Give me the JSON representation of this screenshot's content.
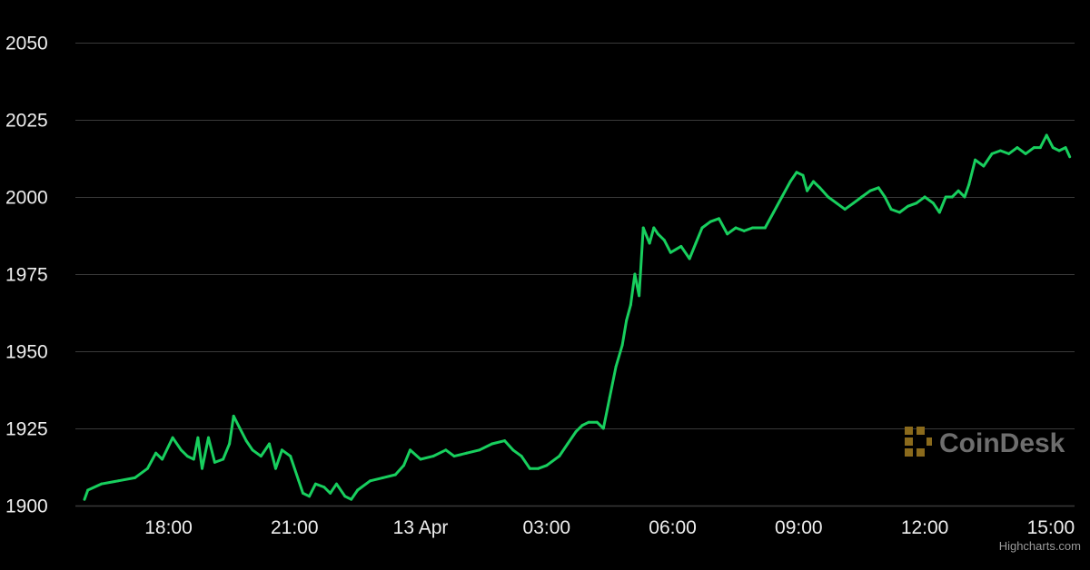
{
  "colors": {
    "background": "#000000",
    "line_up": "#18cf5e",
    "line_down": "#e0261b",
    "grid": "#3a3a3a",
    "text": "#eeeeee",
    "watermark_icon": "#8a6a1c",
    "watermark_text": "#6e6e6e"
  },
  "watermark": {
    "text": "CoinDesk",
    "icon": "coindesk-logo-icon"
  },
  "credit": "Highcharts.com",
  "chart_data": {
    "type": "line",
    "title": "",
    "xlabel": "",
    "ylabel": "",
    "ylim": [
      1900,
      2055
    ],
    "y_ticks": [
      "2050",
      "2025",
      "2000",
      "1975",
      "1950",
      "1925",
      "1900"
    ],
    "y_tick_values": [
      2050,
      2025,
      2000,
      1975,
      1950,
      1925,
      1900
    ],
    "x_ticks": [
      "18:00",
      "21:00",
      "13 Apr",
      "03:00",
      "06:00",
      "09:00",
      "12:00",
      "15:00"
    ],
    "x_tick_hours": [
      18,
      21,
      24,
      27,
      30,
      33,
      36,
      39
    ],
    "xlim_hours": [
      16.0,
      39.5
    ],
    "grid": true,
    "legend": "none",
    "series": [
      {
        "x_hours": [
          16.0,
          16.08,
          16.4,
          16.8,
          17.2,
          17.5,
          17.7,
          17.85,
          18.1,
          18.3,
          18.45,
          18.6,
          18.7,
          18.8,
          18.95,
          19.1,
          19.3,
          19.45,
          19.55,
          19.7,
          19.85,
          20.0,
          20.2,
          20.4,
          20.55,
          20.7,
          20.9,
          21.1,
          21.2,
          21.35,
          21.5,
          21.7,
          21.85,
          22.0,
          22.2,
          22.35,
          22.5,
          22.8,
          23.1,
          23.4,
          23.6,
          23.75,
          24.0,
          24.3,
          24.6,
          24.8,
          25.1,
          25.4,
          25.7,
          26.0,
          26.2,
          26.4,
          26.6,
          26.8,
          27.0,
          27.3,
          27.5,
          27.7,
          27.85,
          28.0,
          28.2,
          28.35,
          28.5,
          28.65,
          28.8,
          28.9,
          29.0,
          29.1,
          29.2,
          29.3,
          29.45,
          29.55,
          29.65,
          29.8,
          29.95,
          30.2,
          30.4,
          30.55,
          30.7,
          30.9,
          31.1,
          31.3,
          31.5,
          31.7,
          31.9,
          32.2,
          32.4,
          32.6,
          32.8,
          32.95,
          33.1,
          33.2,
          33.35,
          33.5,
          33.7,
          33.9,
          34.1,
          34.3,
          34.5,
          34.7,
          34.9,
          35.05,
          35.2,
          35.4,
          35.6,
          35.8,
          36.0,
          36.2,
          36.35,
          36.5,
          36.65,
          36.8,
          36.95,
          37.05,
          37.2,
          37.4,
          37.6,
          37.8,
          38.0,
          38.2,
          38.4,
          38.6,
          38.75,
          38.9,
          39.05,
          39.2,
          39.35,
          39.45
        ],
        "values": [
          1902,
          1905,
          1907,
          1908,
          1909,
          1912,
          1917,
          1915,
          1922,
          1918,
          1916,
          1915,
          1922,
          1912,
          1922,
          1914,
          1915,
          1920,
          1929,
          1925,
          1921,
          1918,
          1916,
          1920,
          1912,
          1918,
          1916,
          1908,
          1904,
          1903,
          1907,
          1906,
          1904,
          1907,
          1903,
          1902,
          1905,
          1908,
          1909,
          1910,
          1913,
          1918,
          1915,
          1916,
          1918,
          1916,
          1917,
          1918,
          1920,
          1921,
          1918,
          1916,
          1912,
          1912,
          1913,
          1916,
          1920,
          1924,
          1926,
          1927,
          1927,
          1925,
          1935,
          1945,
          1952,
          1960,
          1965,
          1975,
          1968,
          1990,
          1985,
          1990,
          1988,
          1986,
          1982,
          1984,
          1980,
          1985,
          1990,
          1992,
          1993,
          1988,
          1990,
          1989,
          1990,
          1990,
          1995,
          2000,
          2005,
          2008,
          2007,
          2002,
          2005,
          2003,
          2000,
          1998,
          1996,
          1998,
          2000,
          2002,
          2003,
          2000,
          1996,
          1995,
          1997,
          1998,
          2000,
          1998,
          1995,
          2000,
          2000,
          2002,
          2000,
          2004,
          2012,
          2010,
          2014,
          2015,
          2014,
          2016,
          2014,
          2016,
          2016,
          2020,
          2016,
          2015,
          2016,
          2013
        ]
      }
    ]
  }
}
